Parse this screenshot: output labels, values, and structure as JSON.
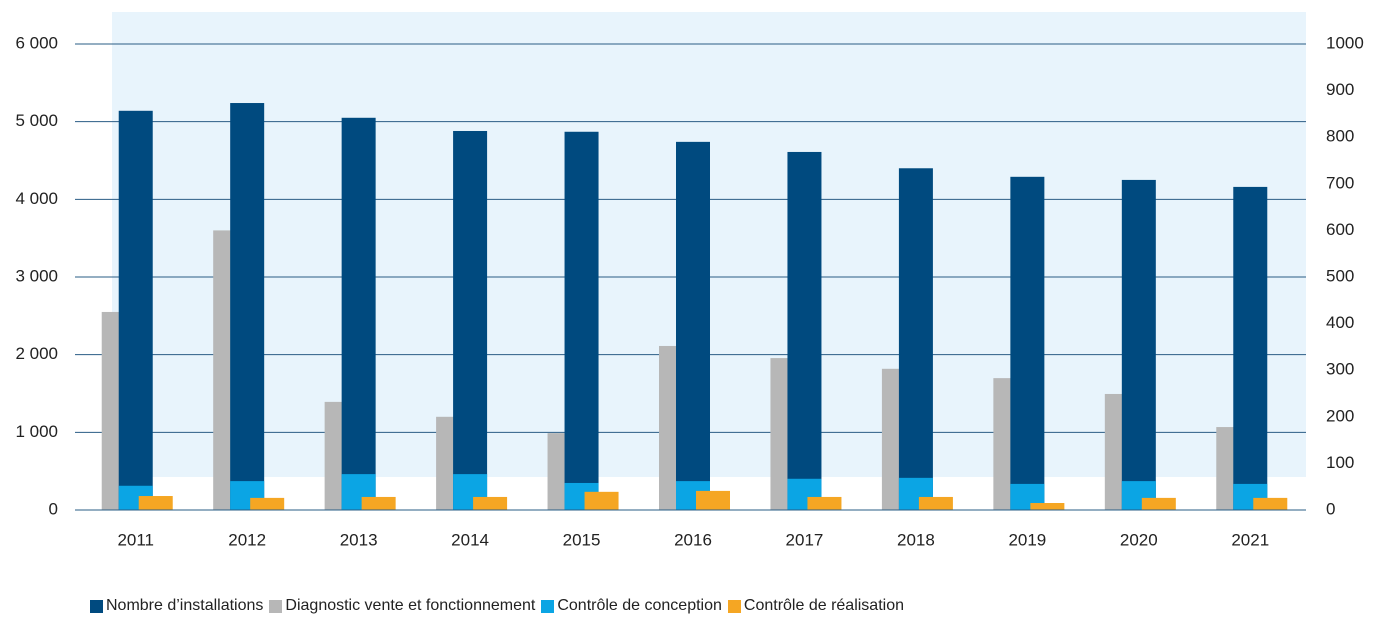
{
  "chart_data": {
    "type": "bar",
    "categories": [
      "2011",
      "2012",
      "2013",
      "2014",
      "2015",
      "2016",
      "2017",
      "2018",
      "2019",
      "2020",
      "2021"
    ],
    "series": [
      {
        "name": "Nombre d’installations",
        "color": "#004a7f",
        "values": [
          5140,
          5240,
          5050,
          4880,
          4870,
          4740,
          4610,
          4400,
          4290,
          4250,
          4160
        ]
      },
      {
        "name": "Diagnostic vente et fonctionnement",
        "color": "#b7b7b7",
        "axis": "y2",
        "values": [
          425,
          600,
          232,
          200,
          165,
          352,
          326,
          303,
          283,
          249,
          178
        ]
      },
      {
        "name": "Contrôle de conception",
        "color": "#0ba5e4",
        "axis": "y2",
        "values": [
          52,
          62,
          77,
          77,
          58,
          62,
          67,
          69,
          56,
          62,
          56
        ]
      },
      {
        "name": "Contrôle de réalisation",
        "color": "#f5a623",
        "axis": "y2",
        "values": [
          30,
          26,
          28,
          28,
          39,
          41,
          28,
          28,
          15,
          26,
          26
        ]
      }
    ],
    "ylim": [
      0,
      6000
    ],
    "yticks": [
      0,
      {
        "value": 1000,
        "label": "1 000"
      },
      {
        "value": 2000,
        "label": "2 000"
      },
      {
        "value": 3000,
        "label": "3 000"
      },
      {
        "value": 4000,
        "label": "4 000"
      },
      {
        "value": 5000,
        "label": "5 000"
      },
      {
        "value": 6000,
        "label": "6 000"
      }
    ],
    "y2lim": [
      0,
      1000
    ],
    "y2ticks": [
      0,
      100,
      200,
      300,
      400,
      500,
      600,
      700,
      800,
      900,
      1000
    ],
    "grid": true
  }
}
